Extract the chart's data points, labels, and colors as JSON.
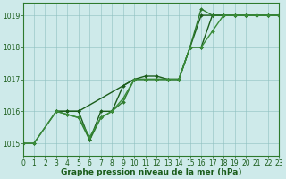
{
  "lines": [
    {
      "x": [
        0,
        1,
        3,
        4,
        5,
        10,
        11,
        12,
        13,
        14,
        15,
        16,
        17,
        18,
        19,
        20,
        21,
        22,
        23
      ],
      "y": [
        1015.0,
        1015.0,
        1016.0,
        1016.0,
        1016.0,
        1017.0,
        1017.0,
        1017.0,
        1017.0,
        1017.0,
        1018.0,
        1019.0,
        1019.0,
        1019.0,
        1019.0,
        1019.0,
        1019.0,
        1019.0,
        1019.0
      ],
      "color": "#1a5c1a",
      "marker": "D",
      "markersize": 2,
      "linewidth": 1.0
    },
    {
      "x": [
        3,
        4,
        5,
        6,
        7,
        8,
        9,
        10,
        11,
        12,
        13,
        14,
        15,
        16,
        17,
        18,
        19,
        20,
        21,
        22,
        23
      ],
      "y": [
        1016.0,
        1016.0,
        1016.0,
        1015.1,
        1016.0,
        1016.0,
        1016.8,
        1017.0,
        1017.1,
        1017.1,
        1017.0,
        1017.0,
        1018.0,
        1018.0,
        1019.0,
        1019.0,
        1019.0,
        1019.0,
        1019.0,
        1019.0,
        1019.0
      ],
      "color": "#1a5c1a",
      "marker": "D",
      "markersize": 2,
      "linewidth": 1.0
    },
    {
      "x": [
        3,
        4,
        5,
        6,
        7,
        8,
        9,
        10,
        11,
        12,
        13,
        14,
        15,
        16,
        17,
        18,
        19,
        20,
        21,
        22,
        23
      ],
      "y": [
        1016.0,
        1015.9,
        1015.8,
        1015.1,
        1015.8,
        1016.0,
        1016.3,
        1017.0,
        1017.0,
        1017.0,
        1017.0,
        1017.0,
        1018.0,
        1019.2,
        1019.0,
        1019.0,
        1019.0,
        1019.0,
        1019.0,
        1019.0,
        1019.0
      ],
      "color": "#2d7a2d",
      "marker": "D",
      "markersize": 2,
      "linewidth": 1.0
    },
    {
      "x": [
        0,
        1,
        3,
        4,
        5,
        6,
        7,
        8,
        9,
        10,
        11,
        12,
        13,
        14,
        15,
        16,
        17,
        18,
        19,
        20,
        21,
        22,
        23
      ],
      "y": [
        1015.0,
        1015.0,
        1016.0,
        1015.9,
        1015.8,
        1015.2,
        1015.8,
        1016.0,
        1016.4,
        1017.0,
        1017.0,
        1017.0,
        1017.0,
        1017.0,
        1018.0,
        1018.0,
        1018.5,
        1019.0,
        1019.0,
        1019.0,
        1019.0,
        1019.0,
        1019.0
      ],
      "color": "#3a8c3a",
      "marker": "D",
      "markersize": 2,
      "linewidth": 1.0
    }
  ],
  "xlim": [
    0,
    23
  ],
  "ylim": [
    1014.6,
    1019.4
  ],
  "yticks": [
    1015,
    1016,
    1017,
    1018,
    1019
  ],
  "xticks": [
    0,
    1,
    2,
    3,
    4,
    5,
    6,
    7,
    8,
    9,
    10,
    11,
    12,
    13,
    14,
    15,
    16,
    17,
    18,
    19,
    20,
    21,
    22,
    23
  ],
  "xlabel": "Graphe pression niveau de la mer (hPa)",
  "background_color": "#ceeaea",
  "grid_color": "#8fbfbf",
  "tick_color": "#1a5c1a",
  "label_color": "#1a5c1a",
  "border_color": "#2d7a2d",
  "xlabel_fontsize": 6.5,
  "tick_fontsize": 5.5
}
